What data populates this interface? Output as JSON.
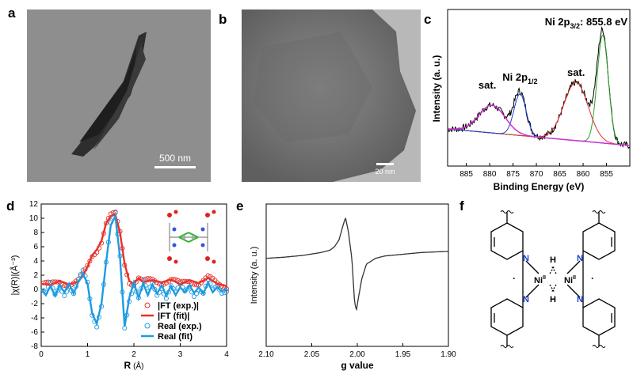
{
  "panels": {
    "a": {
      "label": "a",
      "scale_bar": "500 nm"
    },
    "b": {
      "label": "b",
      "scale_bar": "20 nm"
    },
    "c": {
      "label": "c"
    },
    "d": {
      "label": "d"
    },
    "e": {
      "label": "e"
    },
    "f": {
      "label": "f"
    }
  },
  "structure_f": {
    "ni_left": "Ni",
    "ni_right": "Ni",
    "ox_state": "II",
    "h_top": "H",
    "h_bottom": "H",
    "n_labels": [
      "N",
      "N",
      "N",
      "N"
    ]
  },
  "colors": {
    "xps_raw": "#000000",
    "xps_main": "#2ca02c",
    "xps_sat1": "#e0302a",
    "xps_ni12": "#1a3fd0",
    "xps_sat2": "#d030d0",
    "xps_bg": "#2ca02c",
    "exafs_ft": "#e8322a",
    "exafs_real": "#1e9be0"
  },
  "chart_data": [
    {
      "panel": "c",
      "type": "line",
      "xlabel": "Binding Energy (eV)",
      "ylabel": "Intensity (a. u.)",
      "xlim": [
        889,
        850
      ],
      "x_ticks": [
        885,
        880,
        875,
        870,
        865,
        860,
        855
      ],
      "x_reversed": true,
      "annotations": {
        "main_peak": {
          "prefix": "Ni 2p",
          "sub": "3/2",
          "suffix": ": 855.8 eV",
          "x": 855.8
        },
        "ni12": {
          "prefix": "Ni 2p",
          "sub": "1/2",
          "x": 873.5
        },
        "sat_left": {
          "text": "sat.",
          "x": 880.5
        },
        "sat_right": {
          "text": "sat.",
          "x": 861.5
        }
      },
      "components": [
        {
          "center": 855.8,
          "amp": 0.78,
          "width": 1.2
        },
        {
          "center": 861.5,
          "amp": 0.42,
          "width": 2.6
        },
        {
          "center": 873.5,
          "amp": 0.3,
          "width": 1.3
        },
        {
          "center": 879.5,
          "amp": 0.2,
          "width": 2.8
        }
      ]
    },
    {
      "panel": "d",
      "type": "line",
      "xlabel_prefix": "R",
      "xlabel_unit": "(Å)",
      "ylabel": "|χ(R)|(Å⁻³)",
      "xlim": [
        0,
        4
      ],
      "ylim": [
        -8,
        12
      ],
      "x_ticks": [
        0,
        1,
        2,
        3,
        4
      ],
      "y_ticks": [
        -8,
        -6,
        -4,
        -2,
        0,
        2,
        4,
        6,
        8,
        10,
        12
      ],
      "legend": [
        "|FT (exp.)|",
        "|FT (fit)|",
        "Real (exp.)",
        "Real (fit)"
      ],
      "legend_position": "bottom-right",
      "ft_fit": {
        "R": [
          0,
          0.2,
          0.4,
          0.6,
          0.8,
          0.9,
          1.0,
          1.1,
          1.2,
          1.3,
          1.4,
          1.5,
          1.6,
          1.7,
          1.8,
          1.9,
          2.0,
          2.1,
          2.2,
          2.4,
          2.6,
          2.8,
          3.0,
          3.2,
          3.4,
          3.6,
          3.8,
          4.0
        ],
        "val": [
          0.8,
          0.6,
          1.2,
          0.7,
          1.1,
          1.9,
          3.2,
          4.8,
          5.6,
          6.8,
          9.3,
          10.3,
          10.5,
          8.0,
          3.6,
          1.2,
          0.8,
          1.6,
          1.0,
          1.3,
          1.0,
          1.4,
          0.7,
          1.3,
          0.9,
          1.6,
          0.8,
          0.5
        ]
      },
      "real_fit": {
        "R": [
          0,
          0.1,
          0.2,
          0.3,
          0.4,
          0.5,
          0.6,
          0.7,
          0.8,
          0.9,
          1.0,
          1.1,
          1.2,
          1.3,
          1.4,
          1.5,
          1.6,
          1.7,
          1.8,
          1.9,
          2.0,
          2.1,
          2.2,
          2.3,
          2.4,
          2.5,
          2.6,
          2.7,
          2.8,
          2.9,
          3.0,
          3.1,
          3.2,
          3.3,
          3.4,
          3.5,
          3.6,
          3.7,
          3.8,
          3.9,
          4.0
        ],
        "val": [
          0,
          -0.8,
          0.5,
          -0.9,
          0.6,
          -0.4,
          0.8,
          -0.6,
          1.0,
          2.2,
          0.8,
          -3.4,
          -4.8,
          -2.0,
          3.8,
          9.0,
          10.3,
          4.5,
          -5.2,
          -1.2,
          1.0,
          -1.2,
          0.9,
          -0.8,
          0.7,
          -0.6,
          0.6,
          -0.9,
          0.5,
          -0.8,
          0.3,
          -0.4,
          0.6,
          -0.5,
          0.3,
          -0.6,
          1.0,
          -0.4,
          0.3,
          -0.3,
          0.2
        ]
      }
    },
    {
      "panel": "e",
      "type": "line",
      "xlabel": "g value",
      "ylabel": "Intensity (a. u.)",
      "xlim": [
        2.1,
        1.9
      ],
      "x_ticks": [
        "2.10",
        "2.05",
        "2.00",
        "1.95",
        "1.90"
      ],
      "x_reversed": true,
      "g": [
        2.1,
        2.08,
        2.06,
        2.04,
        2.03,
        2.025,
        2.02,
        2.016,
        2.013,
        2.01,
        2.006,
        2.003,
        2.001,
        1.999,
        1.995,
        1.99,
        1.98,
        1.97,
        1.95,
        1.93,
        1.9
      ],
      "signal": [
        0.3,
        0.32,
        0.35,
        0.4,
        0.44,
        0.5,
        0.62,
        0.85,
        1.0,
        0.78,
        0.3,
        -0.45,
        -0.6,
        -0.4,
        -0.05,
        0.2,
        0.3,
        0.34,
        0.37,
        0.4,
        0.42
      ]
    }
  ]
}
